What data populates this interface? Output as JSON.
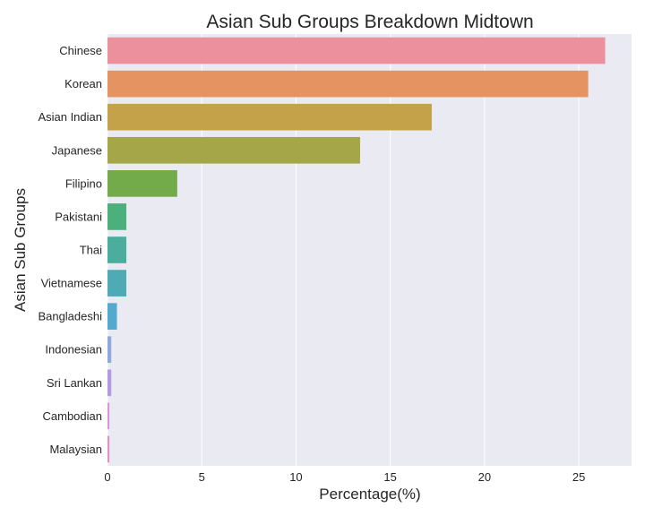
{
  "chart_data": {
    "type": "bar",
    "orientation": "horizontal",
    "title": "Asian Sub Groups Breakdown Midtown",
    "xlabel": "Percentage(%)",
    "ylabel": "Asian Sub Groups",
    "xlim": [
      0,
      27.8
    ],
    "xticks": [
      "0",
      "5",
      "10",
      "15",
      "20",
      "25"
    ],
    "grid": true,
    "plot_background": "#eaeaf2",
    "categories": [
      "Chinese",
      "Korean",
      "Asian Indian",
      "Japanese",
      "Filipino",
      "Pakistani",
      "Thai",
      "Vietnamese",
      "Bangladeshi",
      "Indonesian",
      "Sri Lankan",
      "Cambodian",
      "Malaysian"
    ],
    "values": [
      26.4,
      25.5,
      17.2,
      13.4,
      3.7,
      1.0,
      1.0,
      1.0,
      0.5,
      0.2,
      0.2,
      0.1,
      0.1
    ],
    "colors": [
      "#ec909e",
      "#e59461",
      "#c3a24a",
      "#a5a648",
      "#73ab4a",
      "#4bb07b",
      "#4bad9e",
      "#4eabb6",
      "#53a9cf",
      "#8fa9dd",
      "#b59ae1",
      "#d596dc",
      "#e18fc7"
    ]
  }
}
